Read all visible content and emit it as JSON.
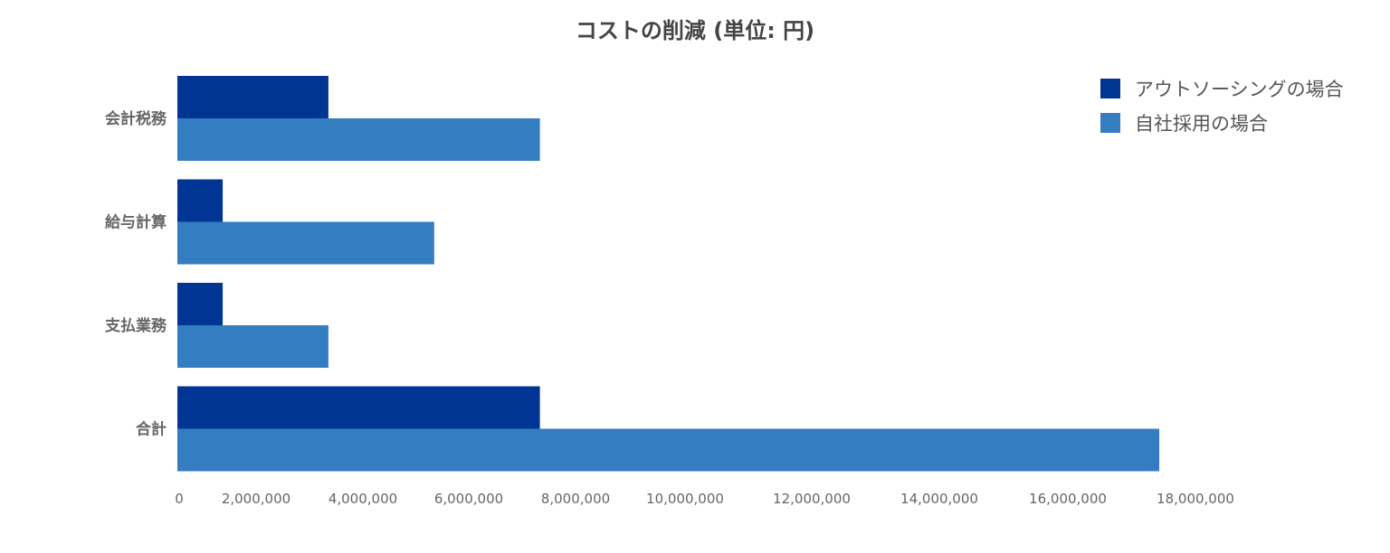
{
  "chart_data": {
    "type": "bar",
    "orientation": "horizontal",
    "title": "コストの削減 (単位: 円)",
    "xlabel": "",
    "ylabel": "",
    "categories": [
      "会計税務",
      "給与計算",
      "支払業務",
      "合計"
    ],
    "series": [
      {
        "name": "アウトソーシングの場合",
        "color": "#003594",
        "values": [
          2400000,
          720000,
          720000,
          5760000
        ]
      },
      {
        "name": "自社採用の場合",
        "color": "#347DC1",
        "values": [
          5760000,
          4080000,
          2400000,
          15600000
        ]
      }
    ],
    "xlim": [
      0,
      18000000
    ],
    "xticks": [
      0,
      2000000,
      4000000,
      6000000,
      8000000,
      10000000,
      12000000,
      14000000,
      16000000,
      18000000
    ],
    "xtick_labels": [
      "0",
      "2,000,000",
      "4,000,000",
      "6,000,000",
      "8,000,000",
      "10,000,000",
      "12,000,000",
      "14,000,000",
      "16,000,000",
      "18,000,000"
    ],
    "grid": false,
    "legend_position": "top-right"
  }
}
